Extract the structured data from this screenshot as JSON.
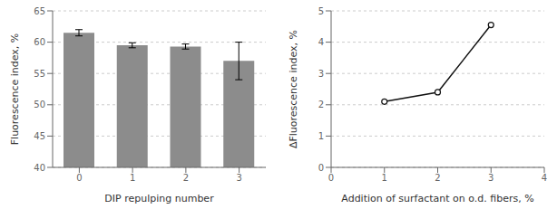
{
  "chart_data": [
    {
      "type": "bar",
      "categories": [
        0,
        1,
        2,
        3
      ],
      "values": [
        61.5,
        59.5,
        59.3,
        57.0
      ],
      "errors": [
        0.5,
        0.4,
        0.4,
        3.0
      ],
      "color": "#8c8c8c",
      "ylim": [
        40,
        65
      ],
      "yticks": [
        40,
        45,
        50,
        55,
        60,
        65
      ],
      "xlabel": "DIP repulping number",
      "ylabel": "Fluorescence index, %",
      "grid": true
    },
    {
      "type": "line",
      "x": [
        1,
        2,
        3
      ],
      "values": [
        2.1,
        2.4,
        4.55
      ],
      "xlim": [
        0,
        4
      ],
      "ylim": [
        0,
        5
      ],
      "xticks": [
        0,
        1,
        2,
        3,
        4
      ],
      "yticks": [
        0,
        1,
        2,
        3,
        4,
        5
      ],
      "xlabel": "Addition of surfactant on o.d. fibers, %",
      "ylabel": "∆Fluorescence index, %",
      "color": "#111111",
      "marker": "circle",
      "grid": true
    }
  ]
}
